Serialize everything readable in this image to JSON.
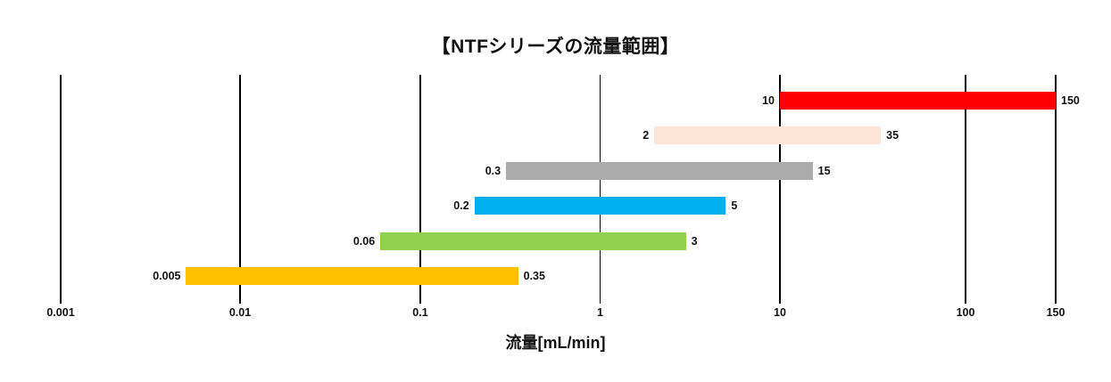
{
  "chart_data": {
    "type": "bar",
    "subtype": "horizontal-range-bars",
    "title": "【NTFシリーズの流量範囲】",
    "xlabel": "流量[mL/min]",
    "x_scale": "log",
    "xlim": [
      0.001,
      150
    ],
    "grid": "vertical-only",
    "legend": "none",
    "x_ticks": [
      0.001,
      0.01,
      0.1,
      1,
      10,
      100,
      150
    ],
    "x_tick_labels": [
      "0.001",
      "0.01",
      "0.1",
      "1",
      "10",
      "100",
      "150"
    ],
    "series": [
      {
        "name": "range-red",
        "min": 10,
        "max": 150,
        "min_label": "10",
        "max_label": "150",
        "color": "#FE0000"
      },
      {
        "name": "range-peach",
        "min": 2,
        "max": 35,
        "min_label": "2",
        "max_label": "35",
        "color": "#FCE4D6"
      },
      {
        "name": "range-gray",
        "min": 0.3,
        "max": 15,
        "min_label": "0.3",
        "max_label": "15",
        "color": "#ABABAB"
      },
      {
        "name": "range-blue",
        "min": 0.2,
        "max": 5,
        "min_label": "0.2",
        "max_label": "5",
        "color": "#00B0F0"
      },
      {
        "name": "range-green",
        "min": 0.06,
        "max": 3,
        "min_label": "0.06",
        "max_label": "3",
        "color": "#92D050"
      },
      {
        "name": "range-yellow",
        "min": 0.005,
        "max": 0.35,
        "min_label": "0.005",
        "max_label": "0.35",
        "color": "#FFC000"
      }
    ],
    "colors": {
      "text": "#111111",
      "gridline": "#000000",
      "background": "#FFFFFF"
    }
  }
}
